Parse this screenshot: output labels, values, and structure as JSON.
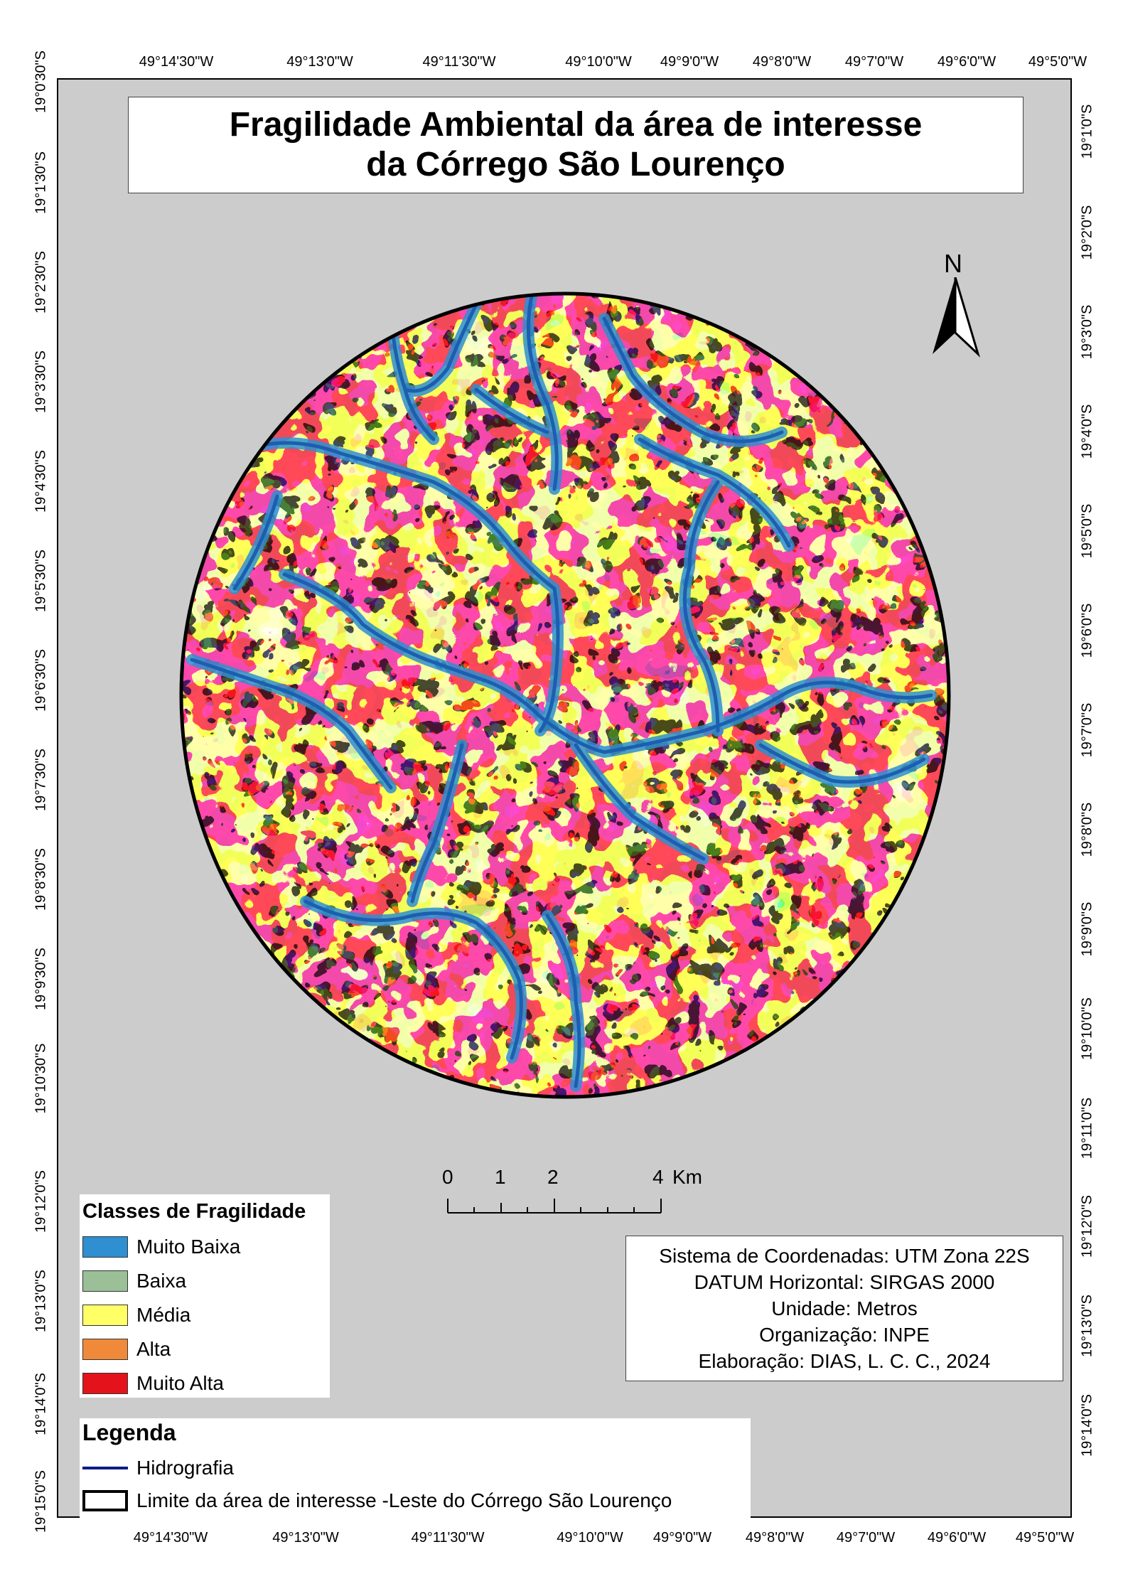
{
  "title": {
    "line1": "Fragilidade Ambiental da área de interesse",
    "line2": "da Córrego São Lourenço"
  },
  "north_label": "N",
  "coords": {
    "top": [
      "49°14'30\"W",
      "49°13'0\"W",
      "49°11'30\"W",
      "49°10'0\"W",
      "49°9'0\"W",
      "49°8'0\"W",
      "49°7'0\"W",
      "49°6'0\"W",
      "49°5'0\"W"
    ],
    "bottom": [
      "49°14'30\"W",
      "49°13'0\"W",
      "49°11'30\"W",
      "49°10'0\"W",
      "49°9'0\"W",
      "49°8'0\"W",
      "49°7'0\"W",
      "49°6'0\"W",
      "49°5'0\"W"
    ],
    "left": [
      "19°0'30\"S",
      "19°1'30\"S",
      "19°2'30\"S",
      "19°3'30\"S",
      "19°4'30\"S",
      "19°5'30\"S",
      "19°6'30\"S",
      "19°7'30\"S",
      "19°8'30\"S",
      "19°9'30\"S",
      "19°10'30\"S",
      "19°12'0\"S",
      "19°13'0\"S",
      "19°14'0\"S",
      "19°15'0\"S"
    ],
    "right": [
      "19°1'0\"S",
      "19°2'0\"S",
      "19°3'0\"S",
      "19°4'0\"S",
      "19°5'0\"S",
      "19°6'0\"S",
      "19°7'0\"S",
      "19°8'0\"S",
      "19°9'0\"S",
      "19°10'0\"S",
      "19°11'0\"S",
      "19°12'0\"S",
      "19°13'0\"S",
      "19°14'0\"S"
    ]
  },
  "scale": {
    "labels": [
      "0",
      "1",
      "2",
      "4"
    ],
    "unit": "Km"
  },
  "classes_legend": {
    "heading": "Classes de Fragilidade",
    "items": [
      {
        "label": "Muito Baixa",
        "color": "#2f8fd0"
      },
      {
        "label": "Baixa",
        "color": "#9bbf97"
      },
      {
        "label": "Média",
        "color": "#ffff66"
      },
      {
        "label": "Alta",
        "color": "#f08a3a"
      },
      {
        "label": "Muito Alta",
        "color": "#e4121a"
      }
    ]
  },
  "legend": {
    "heading": "Legenda",
    "hydrography_label": "Hidrografia",
    "hydrography_color": "#0a1a8a",
    "boundary_label": "Limite da área de interesse -Leste do Córrego São Lourenço"
  },
  "info": [
    "Sistema de Coordenadas: UTM Zona 22S",
    "DATUM Horizontal: SIRGAS 2000",
    "Unidade: Metros",
    "Organização: INPE",
    "Elaboração: DIAS, L. C. C., 2024"
  ],
  "colors": {
    "river_main": "#1a5fb0",
    "river_halo": "#2f8fd0",
    "frame_bg": "#cccccc"
  }
}
